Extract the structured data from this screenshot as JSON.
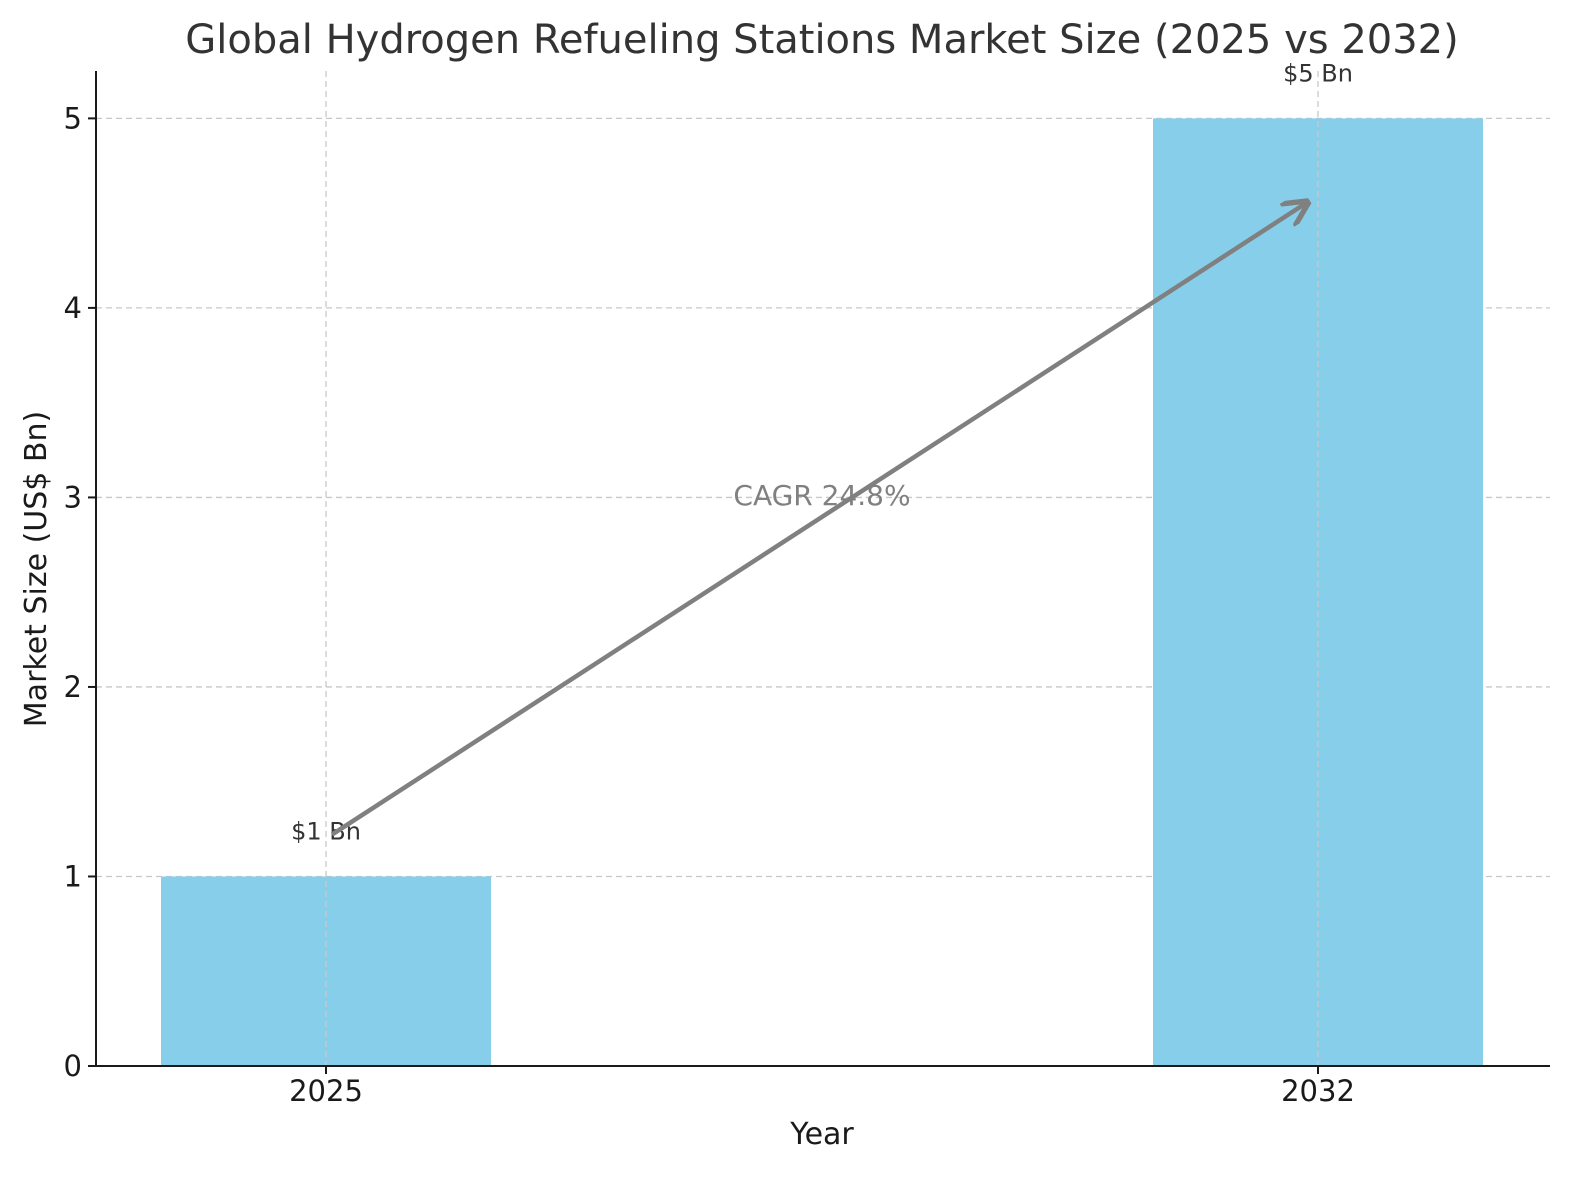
{
  "chart_data": {
    "type": "bar",
    "title": "Global Hydrogen Refueling Stations Market Size (2025 vs 2032)",
    "xlabel": "Year",
    "ylabel": "Market Size (US$ Bn)",
    "categories": [
      "2025",
      "2032"
    ],
    "values": [
      1,
      5
    ],
    "data_labels": [
      "$1 Bn",
      "$5 Bn"
    ],
    "ylim": [
      0,
      5.25
    ],
    "yticks": [
      0,
      1,
      2,
      3,
      4,
      5
    ],
    "grid": true,
    "bar_color": "#87ceeb",
    "annotation": {
      "text": "CAGR 24.8%",
      "arrow_color": "#808080",
      "from": {
        "category": "2025",
        "value": 1.2
      },
      "to": {
        "category": "2032",
        "value": 4.5
      }
    }
  }
}
